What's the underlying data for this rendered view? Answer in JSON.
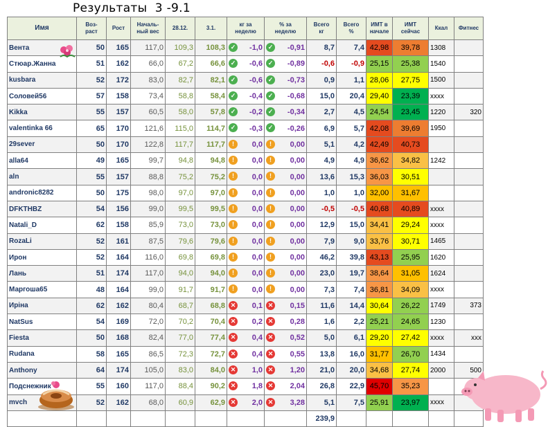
{
  "title": "Результаты  3 -9.1",
  "columns": [
    "Имя",
    "Воз-\nраст",
    "Рост",
    "Началь-\nный вес",
    "28.12.",
    "3.1.",
    "кг за\nнеделю",
    "% за\nнеделю",
    "Всего\nкг",
    "Всего\n%",
    "ИМТ в\nначале",
    "ИМТ\nсейчас",
    "Ккал",
    "Фитнес"
  ],
  "rows": [
    {
      "name": "Вента",
      "age": "50",
      "height": "165",
      "start": "117,0",
      "d1": "109,3",
      "d2": "108,3",
      "icon": "check",
      "kg": "-1,0",
      "pct": "-0,91",
      "tkg": "8,7",
      "tpct": "7,4",
      "bmi0": "42,98",
      "bmi1": "39,78",
      "kcal": "1308",
      "fit": "",
      "c0": "#e54b1f",
      "c1": "#ed7d31"
    },
    {
      "name": "Стюар.Жанна",
      "age": "51",
      "height": "162",
      "start": "66,0",
      "d1": "67,2",
      "d2": "66,6",
      "icon": "check",
      "kg": "-0,6",
      "pct": "-0,89",
      "tkg": "-0,6",
      "tpct": "-0,9",
      "bmi0": "25,15",
      "bmi1": "25,38",
      "kcal": "1540",
      "fit": "",
      "c0": "#92d050",
      "c1": "#92d050"
    },
    {
      "name": "kusbara",
      "age": "52",
      "height": "172",
      "start": "83,0",
      "d1": "82,7",
      "d2": "82,1",
      "icon": "check",
      "kg": "-0,6",
      "pct": "-0,73",
      "tkg": "0,9",
      "tpct": "1,1",
      "bmi0": "28,06",
      "bmi1": "27,75",
      "kcal": "1500",
      "fit": "",
      "c0": "#ffff00",
      "c1": "#ffff00"
    },
    {
      "name": "Соловей56",
      "age": "57",
      "height": "158",
      "start": "73,4",
      "d1": "58,8",
      "d2": "58,4",
      "icon": "check",
      "kg": "-0,4",
      "pct": "-0,68",
      "tkg": "15,0",
      "tpct": "20,4",
      "bmi0": "29,40",
      "bmi1": "23,39",
      "kcal": "xxxx",
      "fit": "",
      "c0": "#ffff00",
      "c1": "#00b050"
    },
    {
      "name": "Kikka",
      "age": "55",
      "height": "157",
      "start": "60,5",
      "d1": "58,0",
      "d2": "57,8",
      "icon": "check",
      "kg": "-0,2",
      "pct": "-0,34",
      "tkg": "2,7",
      "tpct": "4,5",
      "bmi0": "24,54",
      "bmi1": "23,45",
      "kcal": "1220",
      "fit": "320",
      "c0": "#92d050",
      "c1": "#00b050"
    },
    {
      "name": "valentinka 66",
      "age": "65",
      "height": "170",
      "start": "121,6",
      "d1": "115,0",
      "d2": "114,7",
      "icon": "check",
      "kg": "-0,3",
      "pct": "-0,26",
      "tkg": "6,9",
      "tpct": "5,7",
      "bmi0": "42,08",
      "bmi1": "39,69",
      "kcal": "1950",
      "fit": "",
      "c0": "#e54b1f",
      "c1": "#ed7d31"
    },
    {
      "name": "29sever",
      "age": "50",
      "height": "170",
      "start": "122,8",
      "d1": "117,7",
      "d2": "117,7",
      "icon": "neutral",
      "kg": "0,0",
      "pct": "0,00",
      "tkg": "5,1",
      "tpct": "4,2",
      "bmi0": "42,49",
      "bmi1": "40,73",
      "kcal": "",
      "fit": "",
      "c0": "#e54b1f",
      "c1": "#e54b1f"
    },
    {
      "name": "alla64",
      "age": "49",
      "height": "165",
      "start": "99,7",
      "d1": "94,8",
      "d2": "94,8",
      "icon": "neutral",
      "kg": "0,0",
      "pct": "0,00",
      "tkg": "4,9",
      "tpct": "4,9",
      "bmi0": "36,62",
      "bmi1": "34,82",
      "kcal": "1242",
      "fit": "",
      "c0": "#f79646",
      "c1": "#fac045"
    },
    {
      "name": "aln",
      "age": "55",
      "height": "157",
      "start": "88,8",
      "d1": "75,2",
      "d2": "75,2",
      "icon": "neutral",
      "kg": "0,0",
      "pct": "0,00",
      "tkg": "13,6",
      "tpct": "15,3",
      "bmi0": "36,03",
      "bmi1": "30,51",
      "kcal": "",
      "fit": "",
      "c0": "#f79646",
      "c1": "#ffff00"
    },
    {
      "name": "andronic8282",
      "age": "50",
      "height": "175",
      "start": "98,0",
      "d1": "97,0",
      "d2": "97,0",
      "icon": "neutral",
      "kg": "0,0",
      "pct": "0,00",
      "tkg": "1,0",
      "tpct": "1,0",
      "bmi0": "32,00",
      "bmi1": "31,67",
      "kcal": "",
      "fit": "",
      "c0": "#ffc000",
      "c1": "#ffc000"
    },
    {
      "name": "DFKTHBZ",
      "age": "54",
      "height": "156",
      "start": "99,0",
      "d1": "99,5",
      "d2": "99,5",
      "icon": "neutral",
      "kg": "0,0",
      "pct": "0,00",
      "tkg": "-0,5",
      "tpct": "-0,5",
      "bmi0": "40,68",
      "bmi1": "40,89",
      "kcal": "xxxx",
      "fit": "",
      "c0": "#e54b1f",
      "c1": "#e54b1f"
    },
    {
      "name": "Natali_D",
      "age": "62",
      "height": "158",
      "start": "85,9",
      "d1": "73,0",
      "d2": "73,0",
      "icon": "neutral",
      "kg": "0,0",
      "pct": "0,00",
      "tkg": "12,9",
      "tpct": "15,0",
      "bmi0": "34,41",
      "bmi1": "29,24",
      "kcal": "xxxx",
      "fit": "",
      "c0": "#fac045",
      "c1": "#ffff00"
    },
    {
      "name": "RozaLi",
      "age": "52",
      "height": "161",
      "start": "87,5",
      "d1": "79,6",
      "d2": "79,6",
      "icon": "neutral",
      "kg": "0,0",
      "pct": "0,00",
      "tkg": "7,9",
      "tpct": "9,0",
      "bmi0": "33,76",
      "bmi1": "30,71",
      "kcal": "1465",
      "fit": "",
      "c0": "#fac045",
      "c1": "#ffff00"
    },
    {
      "name": "Ирон",
      "age": "52",
      "height": "164",
      "start": "116,0",
      "d1": "69,8",
      "d2": "69,8",
      "icon": "neutral",
      "kg": "0,0",
      "pct": "0,00",
      "tkg": "46,2",
      "tpct": "39,8",
      "bmi0": "43,13",
      "bmi1": "25,95",
      "kcal": "1620",
      "fit": "",
      "c0": "#e54b1f",
      "c1": "#92d050"
    },
    {
      "name": "Лань",
      "age": "51",
      "height": "174",
      "start": "117,0",
      "d1": "94,0",
      "d2": "94,0",
      "icon": "neutral",
      "kg": "0,0",
      "pct": "0,00",
      "tkg": "23,0",
      "tpct": "19,7",
      "bmi0": "38,64",
      "bmi1": "31,05",
      "kcal": "1624",
      "fit": "",
      "c0": "#f79646",
      "c1": "#ffc000"
    },
    {
      "name": "Маргоша65",
      "age": "48",
      "height": "164",
      "start": "99,0",
      "d1": "91,7",
      "d2": "91,7",
      "icon": "neutral",
      "kg": "0,0",
      "pct": "0,00",
      "tkg": "7,3",
      "tpct": "7,4",
      "bmi0": "36,81",
      "bmi1": "34,09",
      "kcal": "xxxx",
      "fit": "",
      "c0": "#f79646",
      "c1": "#fac045"
    },
    {
      "name": "Ирiна",
      "age": "62",
      "height": "162",
      "start": "80,4",
      "d1": "68,7",
      "d2": "68,8",
      "icon": "cross",
      "kg": "0,1",
      "pct": "0,15",
      "tkg": "11,6",
      "tpct": "14,4",
      "bmi0": "30,64",
      "bmi1": "26,22",
      "kcal": "1749",
      "fit": "373",
      "c0": "#ffff00",
      "c1": "#92d050"
    },
    {
      "name": "NatSus",
      "age": "54",
      "height": "169",
      "start": "72,0",
      "d1": "70,2",
      "d2": "70,4",
      "icon": "cross",
      "kg": "0,2",
      "pct": "0,28",
      "tkg": "1,6",
      "tpct": "2,2",
      "bmi0": "25,21",
      "bmi1": "24,65",
      "kcal": "1230",
      "fit": "",
      "c0": "#92d050",
      "c1": "#92d050"
    },
    {
      "name": "Fiesta",
      "age": "50",
      "height": "168",
      "start": "82,4",
      "d1": "77,0",
      "d2": "77,4",
      "icon": "cross",
      "kg": "0,4",
      "pct": "0,52",
      "tkg": "5,0",
      "tpct": "6,1",
      "bmi0": "29,20",
      "bmi1": "27,42",
      "kcal": "xxxx",
      "fit": "xxx",
      "c0": "#ffff00",
      "c1": "#ffff00"
    },
    {
      "name": "Rudana",
      "age": "58",
      "height": "165",
      "start": "86,5",
      "d1": "72,3",
      "d2": "72,7",
      "icon": "cross",
      "kg": "0,4",
      "pct": "0,55",
      "tkg": "13,8",
      "tpct": "16,0",
      "bmi0": "31,77",
      "bmi1": "26,70",
      "kcal": "1434",
      "fit": "",
      "c0": "#ffc000",
      "c1": "#92d050"
    },
    {
      "name": "Anthony",
      "age": "64",
      "height": "174",
      "start": "105,0",
      "d1": "83,0",
      "d2": "84,0",
      "icon": "cross",
      "kg": "1,0",
      "pct": "1,20",
      "tkg": "21,0",
      "tpct": "20,0",
      "bmi0": "34,68",
      "bmi1": "27,74",
      "kcal": "2000",
      "fit": "500",
      "c0": "#fac045",
      "c1": "#ffff00"
    },
    {
      "name": "Подснежник",
      "age": "55",
      "height": "160",
      "start": "117,0",
      "d1": "88,4",
      "d2": "90,2",
      "icon": "cross",
      "kg": "1,8",
      "pct": "2,04",
      "tkg": "26,8",
      "tpct": "22,9",
      "bmi0": "45,70",
      "bmi1": "35,23",
      "kcal": "",
      "fit": "",
      "c0": "#e00000",
      "c1": "#f79646"
    },
    {
      "name": "mvch",
      "age": "52",
      "height": "162",
      "start": "68,0",
      "d1": "60,9",
      "d2": "62,9",
      "icon": "cross",
      "kg": "2,0",
      "pct": "3,28",
      "tkg": "5,1",
      "tpct": "7,5",
      "bmi0": "25,91",
      "bmi1": "23,97",
      "kcal": "xxxx",
      "fit": "",
      "c0": "#92d050",
      "c1": "#00b050"
    }
  ],
  "total": {
    "tkg": "239,9"
  },
  "icons": {
    "check": "check-circle-icon",
    "neutral": "neutral-circle-icon",
    "cross": "cross-circle-icon"
  },
  "images": [
    "flower-icon",
    "cake-icon",
    "pig-icon"
  ]
}
